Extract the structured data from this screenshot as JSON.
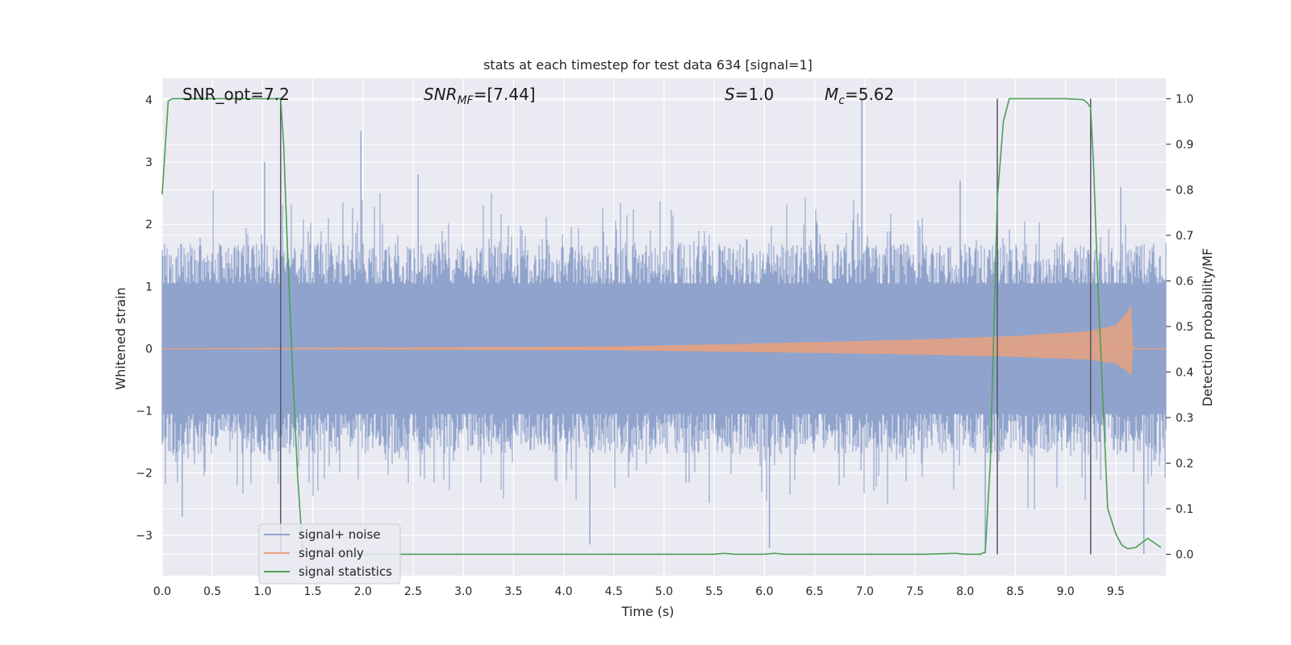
{
  "chart_data": {
    "type": "line",
    "title": "stats at each timestep for test data 634 [signal=1]",
    "xlabel": "Time (s)",
    "ylabel_left": "Whitened strain",
    "ylabel_right": "Detection probability/MF",
    "xlim": [
      0.0,
      10.0
    ],
    "ylim_left": [
      -3.65,
      4.35
    ],
    "ylim_right": [
      -0.047,
      1.045
    ],
    "xticks": [
      "0.0",
      "0.5",
      "1.0",
      "1.5",
      "2.0",
      "2.5",
      "3.0",
      "3.5",
      "4.0",
      "4.5",
      "5.0",
      "5.5",
      "6.0",
      "6.5",
      "7.0",
      "7.5",
      "8.0",
      "8.5",
      "9.0",
      "9.5"
    ],
    "yticks_left": [
      "4",
      "3",
      "2",
      "1",
      "0",
      "−1",
      "−2",
      "−3"
    ],
    "yticks_right": [
      "1.0",
      "0.9",
      "0.8",
      "0.7",
      "0.6",
      "0.5",
      "0.4",
      "0.3",
      "0.2",
      "0.1",
      "0.0"
    ],
    "grid": true,
    "legend_position": "lower-left",
    "annotations": {
      "snr_opt": "SNR_opt=7.2",
      "snr_mf_sym": "SNR",
      "snr_mf_sub": "MF",
      "snr_mf_val": "=[7.44]",
      "s_sym": "S",
      "s_val": "=1.0",
      "mc_sym": "M",
      "mc_sub": "c",
      "mc_val": "=5.62"
    },
    "vertical_lines_x": [
      1.18,
      8.32,
      9.25
    ],
    "series": [
      {
        "name": "signal+ noise",
        "color": "#8fa3cc",
        "kind": "noise",
        "typical_envelope": [
          -1.7,
          1.7
        ],
        "peak_range": [
          -3.3,
          4.0
        ],
        "spikes": [
          {
            "x": 1.98,
            "y": 3.5
          },
          {
            "x": 6.97,
            "y": 4.0
          },
          {
            "x": 2.55,
            "y": 2.8
          },
          {
            "x": 0.2,
            "y": -2.7
          },
          {
            "x": 6.05,
            "y": -3.2
          },
          {
            "x": 4.26,
            "y": -3.15
          },
          {
            "x": 9.78,
            "y": -3.3
          },
          {
            "x": 8.2,
            "y": -3.3
          },
          {
            "x": 1.02,
            "y": 3.0
          },
          {
            "x": 7.95,
            "y": 2.7
          },
          {
            "x": 9.55,
            "y": 2.6
          }
        ]
      },
      {
        "name": "signal only",
        "color": "#e8a17f",
        "kind": "chirp",
        "amplitude_points": [
          [
            0.0,
            0.0
          ],
          [
            4.5,
            0.03
          ],
          [
            6.0,
            0.08
          ],
          [
            7.5,
            0.14
          ],
          [
            8.5,
            0.2
          ],
          [
            9.2,
            0.27
          ],
          [
            9.5,
            0.37
          ],
          [
            9.6,
            0.55
          ],
          [
            9.65,
            0.68
          ],
          [
            9.67,
            0.0
          ]
        ]
      },
      {
        "name": "signal statistics",
        "color": "#4c9f55",
        "kind": "line",
        "axis": "right",
        "x": [
          0.0,
          0.06,
          0.1,
          0.2,
          0.6,
          1.0,
          1.16,
          1.18,
          1.21,
          1.25,
          1.3,
          1.35,
          1.4,
          2.0,
          3.0,
          4.0,
          5.0,
          5.5,
          5.6,
          5.7,
          6.0,
          6.1,
          6.2,
          6.6,
          7.0,
          7.6,
          7.9,
          8.0,
          8.15,
          8.2,
          8.25,
          8.32,
          8.38,
          8.44,
          9.0,
          9.18,
          9.22,
          9.25,
          9.28,
          9.32,
          9.37,
          9.42,
          9.5,
          9.56,
          9.62,
          9.7,
          9.76,
          9.82,
          9.95
        ],
        "y": [
          0.79,
          0.995,
          1.0,
          1.0,
          1.0,
          1.0,
          1.0,
          1.0,
          0.9,
          0.66,
          0.4,
          0.17,
          0.005,
          0.0,
          0.0,
          0.0,
          0.0,
          0.0,
          0.002,
          0.0,
          0.0,
          0.002,
          0.0,
          0.0,
          0.0,
          0.0,
          0.002,
          0.0,
          0.0,
          0.005,
          0.2,
          0.78,
          0.95,
          1.0,
          1.0,
          0.998,
          0.99,
          0.98,
          0.85,
          0.6,
          0.35,
          0.1,
          0.045,
          0.02,
          0.012,
          0.015,
          0.025,
          0.035,
          0.015
        ]
      }
    ]
  }
}
